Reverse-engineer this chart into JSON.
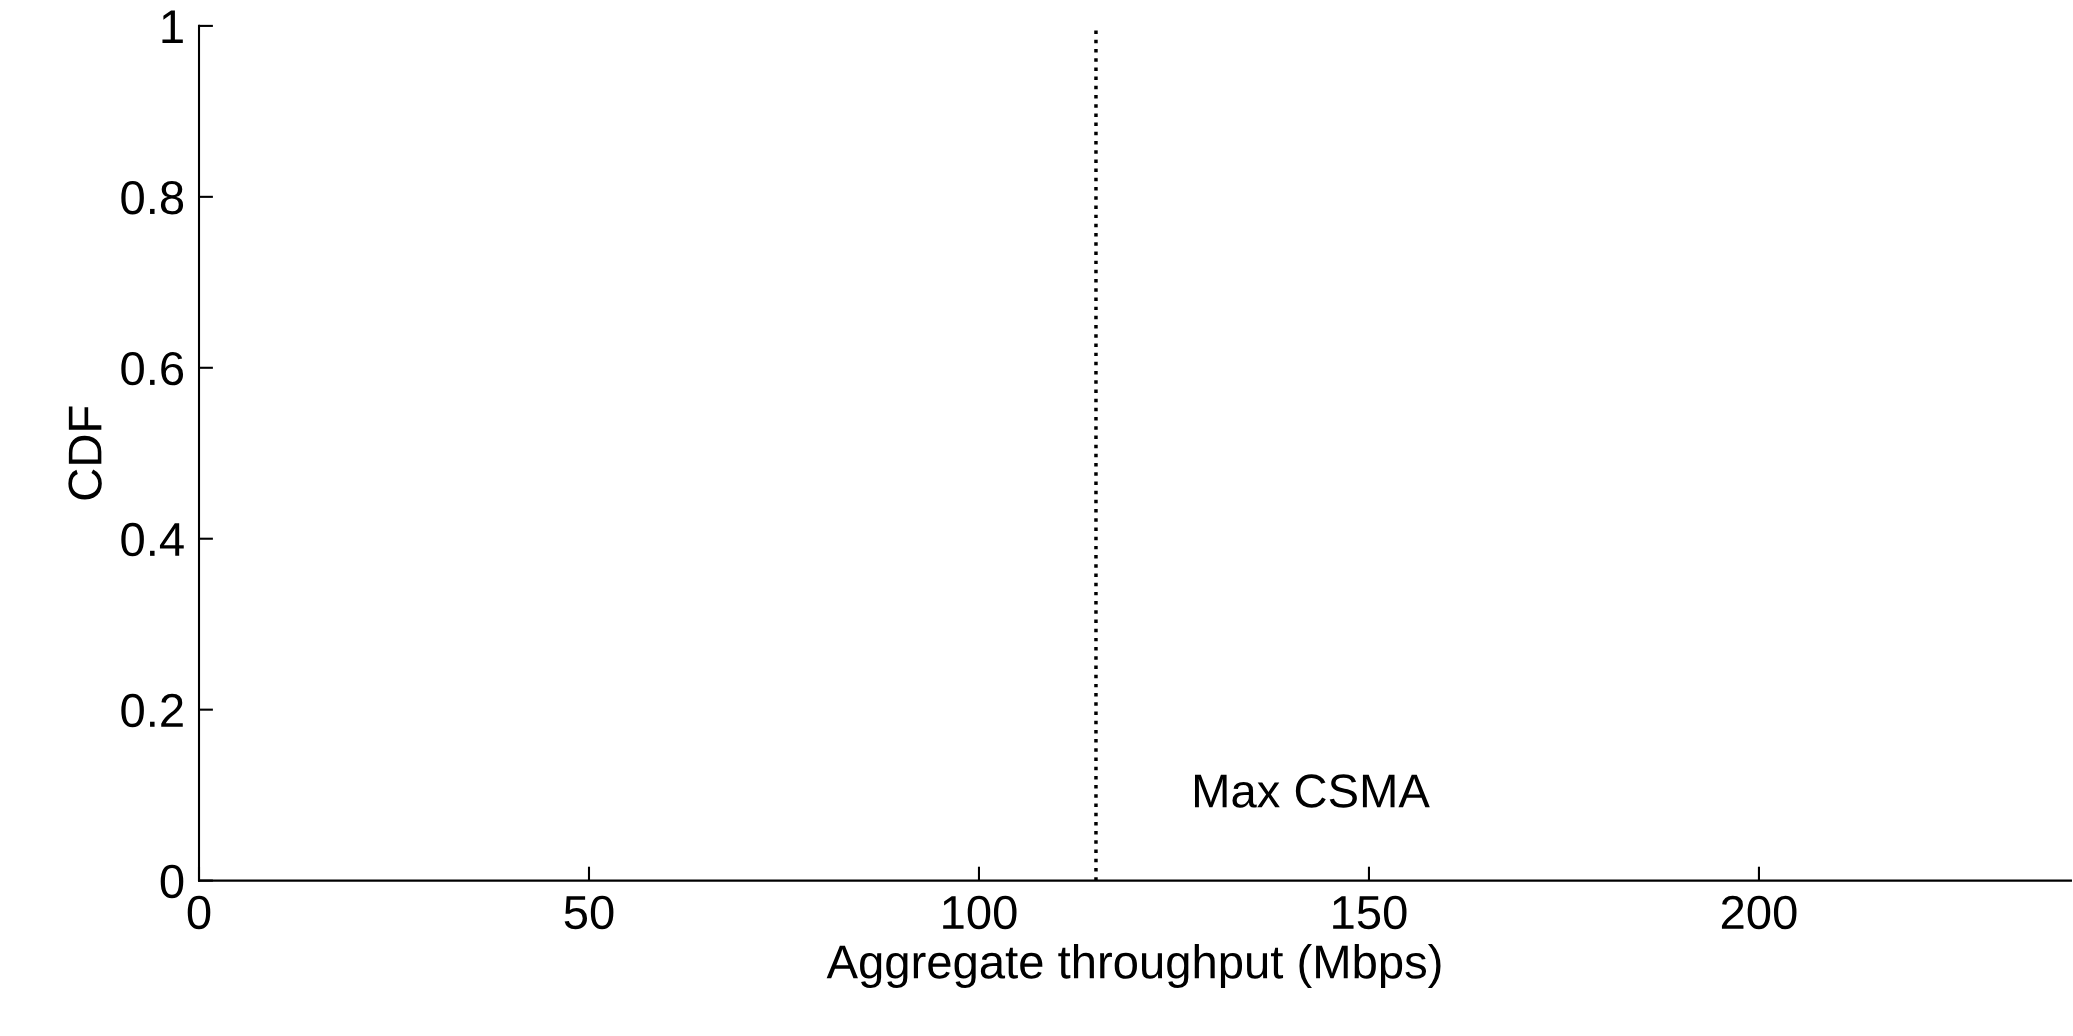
{
  "chart_data": {
    "type": "line",
    "xlabel": "Aggregate throughput (Mbps)",
    "ylabel": "CDF",
    "xlim": [
      0,
      240
    ],
    "xticks": [
      0,
      50,
      100,
      150,
      200
    ],
    "ylim": [
      0,
      1
    ],
    "yticks": [
      0,
      0.2,
      0.4,
      0.6,
      0.8,
      1
    ],
    "grid": false,
    "legend": false,
    "ref_lines": [
      {
        "axis": "x",
        "value": 115,
        "color": "#000000",
        "line_style": "dotted"
      }
    ],
    "annotations": [
      "Max CSMA"
    ]
  }
}
